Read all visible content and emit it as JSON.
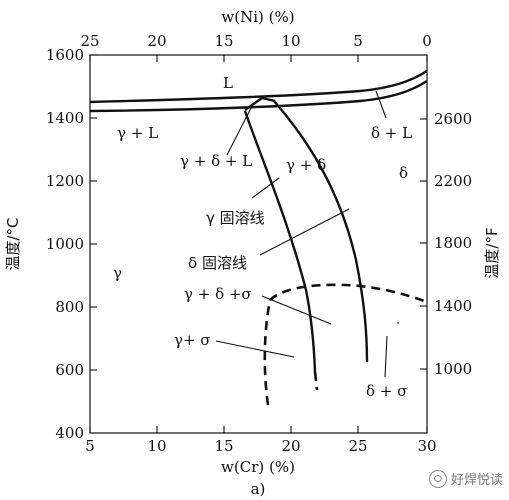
{
  "axes": {
    "bottom_title": "w(Cr) (%)",
    "top_title": "w(Ni) (%)",
    "left_title": "温度/°C",
    "right_title": "温度/°F",
    "bottom_ticks": [
      "5",
      "10",
      "15",
      "20",
      "25",
      "30"
    ],
    "top_ticks": [
      "25",
      "20",
      "15",
      "10",
      "5",
      "0"
    ],
    "left_ticks": [
      "1600",
      "1400",
      "1200",
      "1000",
      "800",
      "600",
      "400"
    ],
    "right_ticks": [
      "2600",
      "2200",
      "1800",
      "1400",
      "1000"
    ]
  },
  "labels": {
    "L": "L",
    "gamma_L": "γ + L",
    "delta_L": "δ + L",
    "gamma_delta_L": "γ + δ + L",
    "gamma_delta": "γ + δ",
    "delta": "δ",
    "gamma_solvus": "γ 固溶线",
    "delta_solvus": "δ 固溶线",
    "gamma": "γ",
    "gamma_delta_sigma": "γ + δ +σ",
    "gamma_sigma": "γ+ σ",
    "delta_sigma": "δ + σ"
  },
  "caption": "a)",
  "watermark": "好焊悦读",
  "watermark_icon": "wechat-icon"
}
